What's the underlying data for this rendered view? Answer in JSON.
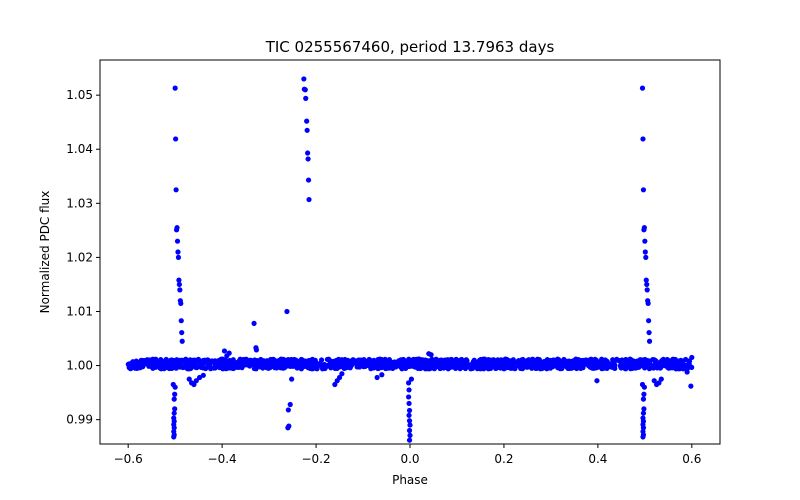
{
  "chart_data": {
    "type": "scatter",
    "title": "TIC 0255567460, period 13.7963 days",
    "xlabel": "Phase",
    "ylabel": "Normalized PDC flux",
    "xlim": [
      -0.66,
      0.66
    ],
    "ylim": [
      0.9855,
      1.0565
    ],
    "xticks": [
      -0.6,
      -0.4,
      -0.2,
      0.0,
      0.2,
      0.4,
      0.6
    ],
    "xtick_labels": [
      "−0.6",
      "−0.4",
      "−0.2",
      "0.0",
      "0.2",
      "0.4",
      "0.6"
    ],
    "yticks": [
      0.99,
      1.0,
      1.01,
      1.02,
      1.03,
      1.04,
      1.05
    ],
    "ytick_labels": [
      "0.99",
      "1.00",
      "1.01",
      "1.02",
      "1.03",
      "1.04",
      "1.05"
    ],
    "marker_color": "#0000ff",
    "grid": false,
    "baseline": {
      "x_range": [
        -0.6,
        0.6
      ],
      "y_center": 1.0003,
      "scatter": 0.0009
    },
    "series": [
      {
        "name": "flux",
        "points": [
          [
            -0.5,
            1.0513
          ],
          [
            -0.499,
            1.0419
          ],
          [
            -0.498,
            1.0325
          ],
          [
            -0.497,
            1.0251
          ],
          [
            -0.496,
            1.0255
          ],
          [
            -0.495,
            1.023
          ],
          [
            -0.494,
            1.021
          ],
          [
            -0.493,
            1.02
          ],
          [
            -0.492,
            1.0158
          ],
          [
            -0.491,
            1.015
          ],
          [
            -0.49,
            1.014
          ],
          [
            -0.489,
            1.012
          ],
          [
            -0.488,
            1.0115
          ],
          [
            -0.487,
            1.0083
          ],
          [
            -0.486,
            1.0061
          ],
          [
            -0.485,
            1.0045
          ],
          [
            -0.501,
            0.9947
          ],
          [
            -0.502,
            0.9938
          ],
          [
            -0.501,
            0.992
          ],
          [
            -0.502,
            0.9912
          ],
          [
            -0.503,
            0.9903
          ],
          [
            -0.502,
            0.9897
          ],
          [
            -0.503,
            0.9891
          ],
          [
            -0.502,
            0.9885
          ],
          [
            -0.503,
            0.9878
          ],
          [
            -0.502,
            0.9872
          ],
          [
            -0.503,
            0.9868
          ],
          [
            -0.5,
            0.996
          ],
          [
            -0.504,
            0.9965
          ],
          [
            -0.47,
            0.9975
          ],
          [
            -0.465,
            0.9968
          ],
          [
            -0.46,
            0.9965
          ],
          [
            -0.455,
            0.9972
          ],
          [
            -0.448,
            0.9978
          ],
          [
            -0.44,
            0.9982
          ],
          [
            -0.385,
            1.0023
          ],
          [
            -0.395,
            1.0027
          ],
          [
            -0.39,
            1.0018
          ],
          [
            -0.332,
            1.0078
          ],
          [
            -0.328,
            1.0033
          ],
          [
            -0.327,
            1.0029
          ],
          [
            -0.262,
            1.01
          ],
          [
            -0.259,
            0.9918
          ],
          [
            -0.255,
            0.9928
          ],
          [
            -0.258,
            0.9888
          ],
          [
            -0.26,
            0.9885
          ],
          [
            -0.252,
            0.9975
          ],
          [
            -0.226,
            1.053
          ],
          [
            -0.225,
            1.0511
          ],
          [
            -0.223,
            1.051
          ],
          [
            -0.222,
            1.0494
          ],
          [
            -0.22,
            1.0452
          ],
          [
            -0.219,
            1.0435
          ],
          [
            -0.218,
            1.0393
          ],
          [
            -0.217,
            1.0382
          ],
          [
            -0.216,
            1.0343
          ],
          [
            -0.215,
            1.0307
          ],
          [
            -0.16,
            0.9965
          ],
          [
            -0.155,
            0.9972
          ],
          [
            -0.15,
            0.9978
          ],
          [
            -0.145,
            0.9985
          ],
          [
            -0.07,
            0.9978
          ],
          [
            -0.06,
            0.9983
          ],
          [
            -0.003,
            0.9968
          ],
          [
            -0.002,
            0.9955
          ],
          [
            -0.003,
            0.9942
          ],
          [
            -0.002,
            0.993
          ],
          [
            -0.001,
            0.9917
          ],
          [
            -0.002,
            0.9908
          ],
          [
            -0.001,
            0.9898
          ],
          [
            0.0,
            0.989
          ],
          [
            -0.001,
            0.988
          ],
          [
            0.0,
            0.9871
          ],
          [
            -0.001,
            0.9862
          ],
          [
            0.003,
            0.9975
          ],
          [
            0.04,
            1.0022
          ],
          [
            0.045,
            1.002
          ],
          [
            0.398,
            0.9972
          ],
          [
            0.495,
            1.0513
          ],
          [
            0.496,
            1.0419
          ],
          [
            0.497,
            1.0325
          ],
          [
            0.498,
            1.0251
          ],
          [
            0.499,
            1.0255
          ],
          [
            0.5,
            1.023
          ],
          [
            0.501,
            1.021
          ],
          [
            0.502,
            1.02
          ],
          [
            0.503,
            1.0158
          ],
          [
            0.504,
            1.015
          ],
          [
            0.505,
            1.014
          ],
          [
            0.506,
            1.012
          ],
          [
            0.507,
            1.0115
          ],
          [
            0.508,
            1.0083
          ],
          [
            0.509,
            1.0061
          ],
          [
            0.51,
            1.0045
          ],
          [
            0.498,
            0.9947
          ],
          [
            0.497,
            0.9938
          ],
          [
            0.498,
            0.992
          ],
          [
            0.497,
            0.9912
          ],
          [
            0.496,
            0.9903
          ],
          [
            0.497,
            0.9897
          ],
          [
            0.496,
            0.9891
          ],
          [
            0.497,
            0.9885
          ],
          [
            0.496,
            0.9878
          ],
          [
            0.497,
            0.9872
          ],
          [
            0.496,
            0.9868
          ],
          [
            0.499,
            0.996
          ],
          [
            0.495,
            0.9965
          ],
          [
            0.52,
            0.9972
          ],
          [
            0.525,
            0.9965
          ],
          [
            0.53,
            0.9968
          ],
          [
            0.535,
            0.9975
          ],
          [
            0.59,
            0.9988
          ],
          [
            0.598,
            0.9962
          ],
          [
            0.6,
            1.0015
          ],
          [
            0.58,
            0.9995
          ]
        ]
      }
    ]
  }
}
